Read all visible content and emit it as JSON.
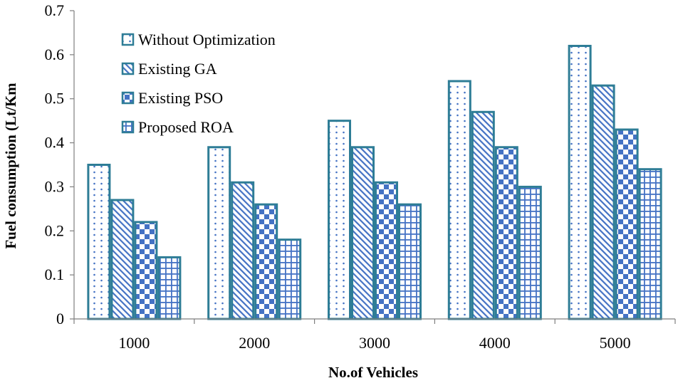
{
  "chart_data": {
    "type": "bar",
    "title": "",
    "xlabel": "No.of Vehicles",
    "ylabel": "Fuel consumption (Lt/Km",
    "categories": [
      "1000",
      "2000",
      "3000",
      "4000",
      "5000"
    ],
    "ylim": [
      0,
      0.7
    ],
    "yticks": [
      "0",
      "0.1",
      "0.2",
      "0.3",
      "0.4",
      "0.5",
      "0.6",
      "0.7"
    ],
    "legend_position": "top-left",
    "grid": false,
    "series": [
      {
        "name": "Without Optimization",
        "values": [
          0.35,
          0.39,
          0.45,
          0.54,
          0.62
        ],
        "pattern": "dots"
      },
      {
        "name": "Existing GA",
        "values": [
          0.27,
          0.31,
          0.39,
          0.47,
          0.53
        ],
        "pattern": "diagonal"
      },
      {
        "name": "Existing PSO",
        "values": [
          0.22,
          0.26,
          0.31,
          0.39,
          0.43
        ],
        "pattern": "checker"
      },
      {
        "name": "Proposed ROA",
        "values": [
          0.14,
          0.18,
          0.26,
          0.3,
          0.34
        ],
        "pattern": "grid"
      }
    ],
    "colors": {
      "outline": "#2E7D96",
      "fill": "#4472C4",
      "axis": "#7f7f7f"
    }
  }
}
